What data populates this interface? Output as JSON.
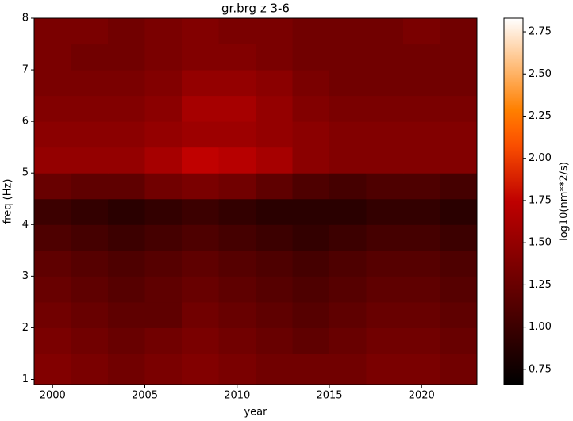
{
  "chart_data": {
    "type": "heatmap",
    "title": "gr.brg z 3-6",
    "x_label": "year",
    "y_label": "freq (Hz)",
    "colorbar_label": "log10(nm**2/s)",
    "colormap": "gist_heat",
    "x_edges": [
      1999,
      2001,
      2003,
      2005,
      2007,
      2009,
      2011,
      2013,
      2015,
      2017,
      2019,
      2021,
      2023
    ],
    "y_edges": [
      0.9,
      1.5,
      2,
      2.5,
      3,
      3.5,
      4,
      4.5,
      5,
      5.5,
      6,
      6.5,
      7,
      7.5,
      8
    ],
    "values": [
      [
        1.4,
        1.35,
        1.3,
        1.35,
        1.4,
        1.35,
        1.3,
        1.3,
        1.3,
        1.35,
        1.35,
        1.3
      ],
      [
        1.35,
        1.3,
        1.25,
        1.3,
        1.35,
        1.3,
        1.25,
        1.2,
        1.25,
        1.3,
        1.3,
        1.25
      ],
      [
        1.3,
        1.25,
        1.2,
        1.2,
        1.3,
        1.25,
        1.2,
        1.15,
        1.2,
        1.25,
        1.25,
        1.2
      ],
      [
        1.25,
        1.2,
        1.15,
        1.2,
        1.25,
        1.2,
        1.15,
        1.1,
        1.15,
        1.2,
        1.2,
        1.15
      ],
      [
        1.2,
        1.15,
        1.1,
        1.15,
        1.2,
        1.15,
        1.1,
        1.05,
        1.1,
        1.15,
        1.15,
        1.1
      ],
      [
        1.1,
        1.05,
        1.0,
        1.05,
        1.1,
        1.05,
        1.0,
        0.95,
        1.0,
        1.05,
        1.05,
        1.0
      ],
      [
        1.0,
        0.95,
        0.9,
        0.95,
        1.0,
        0.95,
        0.9,
        0.9,
        0.9,
        0.95,
        0.95,
        0.9
      ],
      [
        1.25,
        1.2,
        1.2,
        1.3,
        1.35,
        1.3,
        1.2,
        1.1,
        1.05,
        1.1,
        1.1,
        1.05
      ],
      [
        1.5,
        1.5,
        1.5,
        1.6,
        1.75,
        1.7,
        1.6,
        1.45,
        1.4,
        1.4,
        1.4,
        1.4
      ],
      [
        1.45,
        1.45,
        1.45,
        1.5,
        1.55,
        1.55,
        1.5,
        1.45,
        1.4,
        1.4,
        1.4,
        1.4
      ],
      [
        1.4,
        1.4,
        1.4,
        1.45,
        1.6,
        1.6,
        1.5,
        1.4,
        1.35,
        1.35,
        1.35,
        1.35
      ],
      [
        1.35,
        1.35,
        1.35,
        1.4,
        1.5,
        1.5,
        1.45,
        1.35,
        1.3,
        1.3,
        1.3,
        1.3
      ],
      [
        1.35,
        1.3,
        1.3,
        1.35,
        1.4,
        1.4,
        1.35,
        1.3,
        1.3,
        1.3,
        1.3,
        1.3
      ],
      [
        1.35,
        1.35,
        1.3,
        1.35,
        1.4,
        1.35,
        1.35,
        1.3,
        1.3,
        1.3,
        1.35,
        1.3
      ]
    ],
    "xlim": [
      1999,
      2023
    ],
    "ylim": [
      0.9,
      8
    ],
    "clim": [
      0.66,
      2.83
    ],
    "xticks": [
      2000,
      2005,
      2010,
      2015,
      2020
    ],
    "yticks": [
      1,
      2,
      3,
      4,
      5,
      6,
      7,
      8
    ],
    "cticks": [
      0.75,
      {
        "value": 1.0,
        "label": "1.00"
      },
      1.25,
      {
        "value": 1.5,
        "label": "1.50"
      },
      1.75,
      {
        "value": 2.0,
        "label": "2.00"
      },
      2.25,
      {
        "value": 2.5,
        "label": "2.50"
      },
      2.75
    ]
  }
}
